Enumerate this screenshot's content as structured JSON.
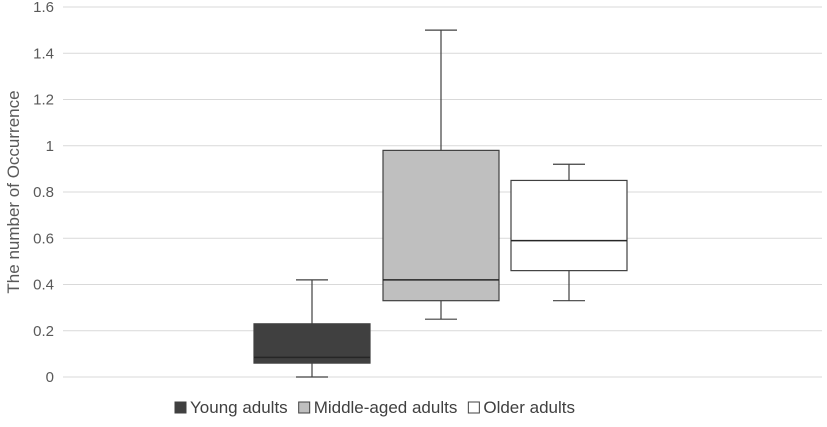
{
  "chart_data": {
    "type": "box",
    "title": "",
    "xlabel": "",
    "ylabel": "The number of Occurrence",
    "ylim": [
      0,
      1.6
    ],
    "yticks": [
      "0",
      "0.2",
      "0.4",
      "0.6",
      "0.8",
      "1",
      "1.2",
      "1.4",
      "1.6"
    ],
    "grid": true,
    "legend_position": "bottom",
    "series": [
      {
        "name": "Young adults",
        "color": "#404040",
        "min": 0.0,
        "q1": 0.06,
        "median": 0.085,
        "q3": 0.23,
        "max": 0.42
      },
      {
        "name": "Middle-aged adults",
        "color": "#bfbfbf",
        "min": 0.25,
        "q1": 0.33,
        "median": 0.42,
        "q3": 0.98,
        "max": 1.5
      },
      {
        "name": "Older adults",
        "color": "#ffffff",
        "min": 0.33,
        "q1": 0.46,
        "median": 0.59,
        "q3": 0.85,
        "max": 0.92
      }
    ]
  }
}
